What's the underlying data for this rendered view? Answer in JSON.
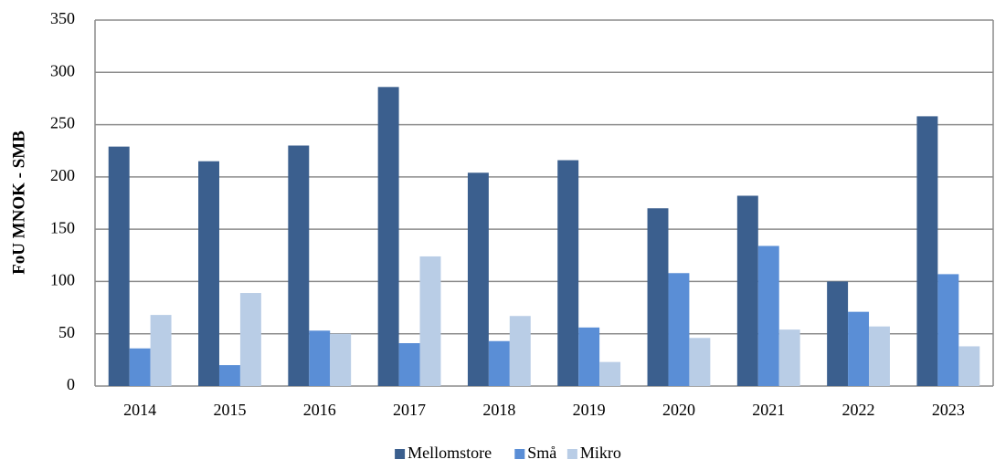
{
  "chart_data": {
    "type": "bar",
    "y_label": "FoU MNOK - SMB",
    "categories": [
      "2014",
      "2015",
      "2016",
      "2017",
      "2018",
      "2019",
      "2020",
      "2021",
      "2022",
      "2023"
    ],
    "series": [
      {
        "name": "Mellomstore",
        "color": "#3b5f8e",
        "values": [
          229,
          215,
          230,
          286,
          204,
          216,
          170,
          182,
          100,
          258
        ]
      },
      {
        "name": "Små",
        "color": "#5a8ed6",
        "values": [
          36,
          20,
          53,
          41,
          43,
          56,
          108,
          134,
          71,
          107
        ]
      },
      {
        "name": "Mikro",
        "color": "#b9cde6",
        "values": [
          68,
          89,
          50,
          124,
          67,
          23,
          46,
          54,
          57,
          38
        ]
      }
    ],
    "ylim": [
      0,
      350
    ],
    "yticks": [
      0,
      50,
      100,
      150,
      200,
      250,
      300,
      350
    ],
    "grid": true,
    "legend": "bottom"
  }
}
